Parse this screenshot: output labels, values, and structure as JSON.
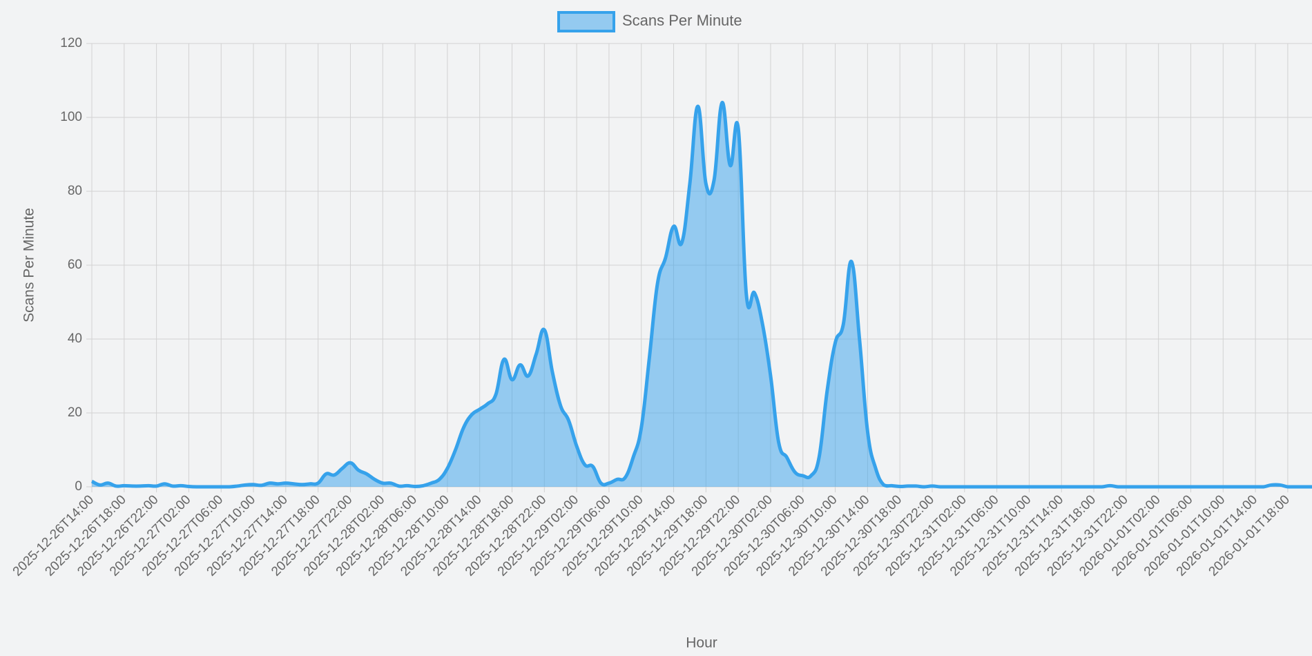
{
  "chart_data": {
    "type": "line",
    "x_label": "Hour",
    "y_label": "Scans Per Minute",
    "categories": [
      "2025-12-26T14:00",
      null,
      null,
      null,
      "2025-12-26T18:00",
      null,
      null,
      null,
      "2025-12-26T22:00",
      null,
      null,
      null,
      "2025-12-27T02:00",
      null,
      null,
      null,
      "2025-12-27T06:00",
      null,
      null,
      null,
      "2025-12-27T10:00",
      null,
      null,
      null,
      "2025-12-27T14:00",
      null,
      null,
      null,
      "2025-12-27T18:00",
      null,
      null,
      null,
      "2025-12-27T22:00",
      null,
      null,
      null,
      "2025-12-28T02:00",
      null,
      null,
      null,
      "2025-12-28T06:00",
      null,
      null,
      null,
      "2025-12-28T10:00",
      null,
      null,
      null,
      "2025-12-28T14:00",
      null,
      null,
      null,
      "2025-12-28T18:00",
      null,
      null,
      null,
      "2025-12-28T22:00",
      null,
      null,
      null,
      "2025-12-29T02:00",
      null,
      null,
      null,
      "2025-12-29T06:00",
      null,
      null,
      null,
      "2025-12-29T10:00",
      null,
      null,
      null,
      "2025-12-29T14:00",
      null,
      null,
      null,
      "2025-12-29T18:00",
      null,
      null,
      null,
      "2025-12-29T22:00",
      null,
      null,
      null,
      "2025-12-30T02:00",
      null,
      null,
      null,
      "2025-12-30T06:00",
      null,
      null,
      null,
      "2025-12-30T10:00",
      null,
      null,
      null,
      "2025-12-30T14:00",
      null,
      null,
      null,
      "2025-12-30T18:00",
      null,
      null,
      null,
      "2025-12-30T22:00",
      null,
      null,
      null,
      "2025-12-31T02:00",
      null,
      null,
      null,
      "2025-12-31T06:00",
      null,
      null,
      null,
      "2025-12-31T10:00",
      null,
      null,
      null,
      "2025-12-31T14:00",
      null,
      null,
      null,
      "2025-12-31T18:00",
      null,
      null,
      null,
      "2025-12-31T22:00",
      null,
      null,
      null,
      "2026-01-01T02:00",
      null,
      null,
      null,
      "2026-01-01T06:00",
      null,
      null,
      null,
      "2026-01-01T10:00",
      null,
      null,
      null,
      "2026-01-01T14:00",
      null,
      null,
      null,
      "2026-01-01T18:00",
      null,
      null,
      null
    ],
    "series": [
      {
        "name": "Scans Per Minute",
        "color": "#36a2eb",
        "fill": "rgba(54,162,235,0.5)",
        "values": [
          1.5,
          0.5,
          1,
          0.2,
          0.3,
          0.2,
          0.2,
          0.3,
          0.2,
          0.8,
          0.2,
          0.3,
          0.1,
          0,
          0,
          0,
          0,
          0,
          0.2,
          0.5,
          0.6,
          0.4,
          1,
          0.8,
          1,
          0.8,
          0.6,
          0.8,
          1,
          3.5,
          3.2,
          5,
          6.5,
          4.5,
          3.5,
          2,
          1,
          1,
          0.2,
          0.3,
          0.1,
          0.3,
          1,
          2,
          5,
          10,
          16,
          19.5,
          21,
          22.5,
          25,
          34.5,
          29,
          33,
          30,
          36,
          42.5,
          31,
          22,
          18,
          11,
          6,
          5.5,
          1,
          1,
          2,
          2.5,
          8,
          16,
          35,
          55,
          62,
          70.5,
          66,
          82,
          103,
          82,
          83,
          104,
          87,
          97,
          52,
          52.5,
          44,
          30,
          12,
          8,
          4,
          3,
          3,
          8,
          26,
          39,
          44,
          61,
          40,
          15,
          5,
          0.5,
          0.3,
          0.1,
          0.2,
          0.2,
          0,
          0.2,
          0,
          0,
          0,
          0,
          0,
          0,
          0,
          0,
          0,
          0,
          0,
          0,
          0,
          0,
          0,
          0,
          0,
          0,
          0,
          0,
          0,
          0.3,
          0,
          0,
          0,
          0,
          0,
          0,
          0,
          0,
          0,
          0,
          0,
          0,
          0,
          0,
          0,
          0,
          0,
          0,
          0,
          0.5,
          0.5,
          0,
          0,
          0,
          0
        ]
      }
    ],
    "ylim": [
      0,
      120
    ],
    "yticks": [
      0,
      20,
      40,
      60,
      80,
      100,
      120
    ],
    "grid": true,
    "legend": "top"
  }
}
